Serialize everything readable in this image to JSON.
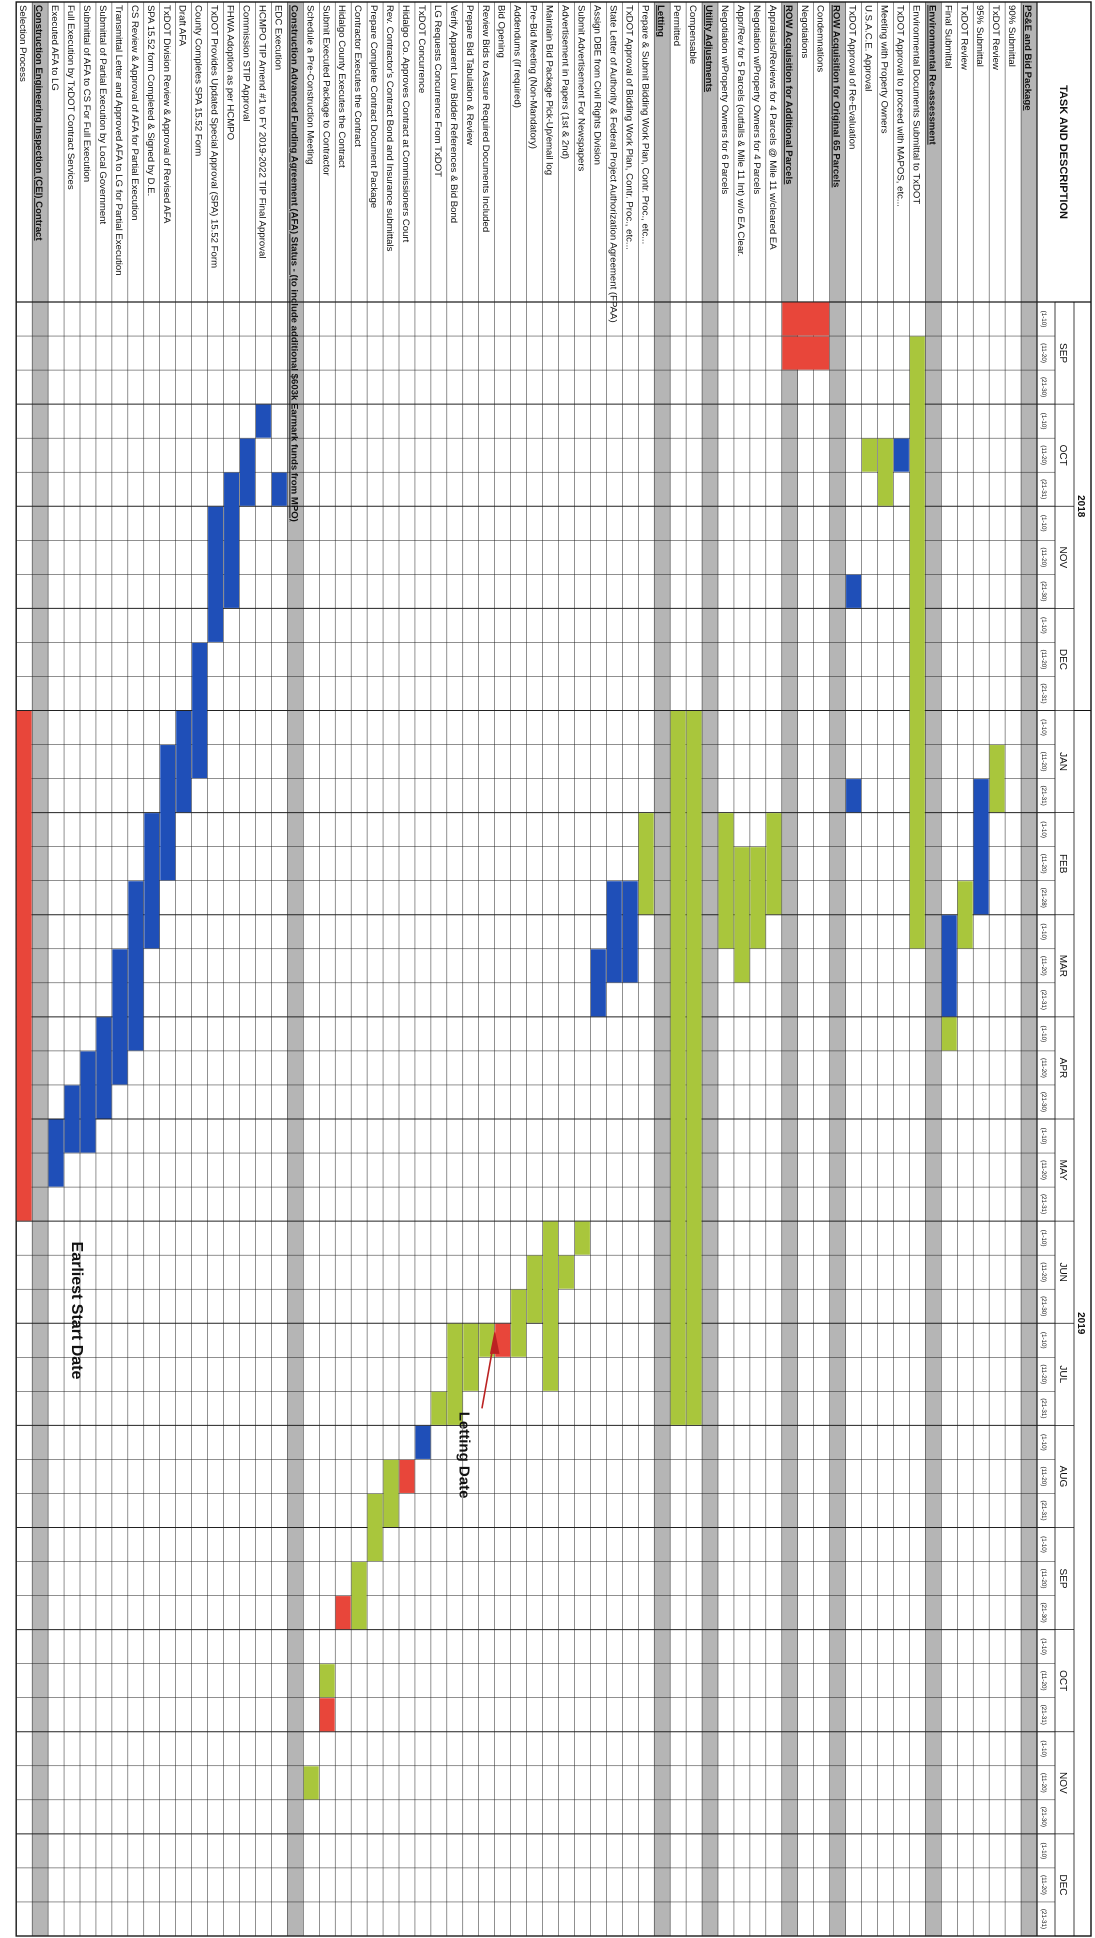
{
  "chart_data": {
    "type": "gantt",
    "title": "TASK AND DESCRIPTION",
    "years": [
      {
        "label": "2018",
        "months": [
          "SEP",
          "OCT",
          "NOV",
          "DEC"
        ]
      },
      {
        "label": "2019",
        "months": [
          "JAN",
          "FEB",
          "MAR",
          "APR",
          "MAY",
          "JUN",
          "JUL",
          "AUG",
          "SEP",
          "OCT",
          "NOV",
          "DEC"
        ]
      }
    ],
    "periods": [
      "(1-10)",
      "(11-20)",
      "(21-30)",
      "(1-10)",
      "(11-20)",
      "(21-31)",
      "(1-10)",
      "(11-20)",
      "(21-30)",
      "(1-10)",
      "(11-20)",
      "(21-31)",
      "(1-10)",
      "(11-20)",
      "(21-31)",
      "(1-10)",
      "(11-20)",
      "(21-28)",
      "(1-10)",
      "(11-20)",
      "(21-31)",
      "(1-10)",
      "(11-20)",
      "(21-30)",
      "(1-10)",
      "(11-20)",
      "(21-31)",
      "(1-10)",
      "(11-20)",
      "(21-30)",
      "(1-10)",
      "(11-20)",
      "(21-31)",
      "(1-10)",
      "(11-20)",
      "(21-31)",
      "(1-10)",
      "(11-20)",
      "(21-30)",
      "(1-10)",
      "(11-20)",
      "(21-31)",
      "(1-10)",
      "(11-20)",
      "(21-30)",
      "(1-10)",
      "(11-20)",
      "(21-31)"
    ],
    "colors": {
      "red": "#e8463a",
      "green": "#a9c63c",
      "blue": "#1f4fb8",
      "section": "#b5b5b5"
    },
    "tasks": [
      {
        "label": "PS&E and Bid Package",
        "section": true,
        "bars": []
      },
      {
        "label": "90% Submittal",
        "bars": []
      },
      {
        "label": "TxDOT Review",
        "bars": []
      },
      {
        "label": "95% Submittal",
        "bars": []
      },
      {
        "label": "TxDOT Review",
        "bars": []
      },
      {
        "label": "Final Submittal",
        "bars": []
      },
      {
        "label": "Environmental Re-assessment",
        "section": true,
        "bars": []
      },
      {
        "label": "Environmental Documents Submittal to TxDOT",
        "bars": []
      },
      {
        "label": "TxDOT Approval to proceed with MAPOS, etc...",
        "bars": []
      },
      {
        "label": "Meeting with Property Owners",
        "bars": []
      },
      {
        "label": "U.S.A.C.E. Approval",
        "bars": []
      },
      {
        "label": "TxDOT Approval of Re-Evaluation",
        "bars": []
      },
      {
        "label": "ROW Acquisition for Original 65 Parcels",
        "section": true,
        "bars": []
      },
      {
        "label": "Condemnations",
        "bars": []
      },
      {
        "label": "Negotiations",
        "bars": []
      },
      {
        "label": "ROW Acquisition for Additional Parcels",
        "section": true,
        "bars": []
      },
      {
        "label": "Appraisals/Reviews for 4 Parcels @ Mile 11 w/cleared EA",
        "bars": []
      },
      {
        "label": "Negotiation w/Property Owners for 4 Parcels",
        "bars": []
      },
      {
        "label": "Appr/Rev for 5 Parcels (outfalls & Mile 11 Int) w/o EA Clear.",
        "bars": []
      },
      {
        "label": "Negotiation w/Property Owners for 6 Parcels",
        "bars": []
      },
      {
        "label": "Utility Adjustments",
        "section": true,
        "bars": []
      },
      {
        "label": "Compensable",
        "bars": []
      },
      {
        "label": "Permitted",
        "bars": []
      },
      {
        "label": "Letting",
        "section": true,
        "bars": []
      },
      {
        "label": "Prepare & Submit Bidding Work Plan, Contr. Proc., etc...",
        "bars": []
      },
      {
        "label": "TxDOT Approval of Bidding Work Plan, Contr. Proc., etc...",
        "bars": []
      },
      {
        "label": "State Letter of Authority & Federal Project Authorization Agreement (FPAA)",
        "bars": []
      },
      {
        "label": "Assign DBE from Civil Rights Division",
        "bars": []
      },
      {
        "label": "Submit Advertisement For Newspapers",
        "bars": []
      },
      {
        "label": "Advertisement in Papers (1st & 2nd)",
        "bars": []
      },
      {
        "label": "Maintain Bid Package Pick-Up/email log",
        "bars": []
      },
      {
        "label": "Pre-Bid Meeting (Non-Mandatory)",
        "bars": []
      },
      {
        "label": "Addendums (if required)",
        "bars": []
      },
      {
        "label": "Bid Opening",
        "bars": []
      },
      {
        "label": "Review Bids to Assure Required Documents Included",
        "bars": []
      },
      {
        "label": "Prepare Bid Tabulation & Review",
        "bars": []
      },
      {
        "label": "Verify Apparent Low Bidder References & Bid Bond",
        "bars": []
      },
      {
        "label": "LG Requests Concurrence From TxDOT",
        "bars": []
      },
      {
        "label": "TxDOT Concurrence",
        "bars": []
      },
      {
        "label": "Hidalgo Co. Approves Contract at Commissioners Court",
        "bars": []
      },
      {
        "label": "Rev. Contractor's Contract Bond and Insurance submittals",
        "bars": []
      },
      {
        "label": "Prepare Complete Contract Document Package",
        "bars": []
      },
      {
        "label": "Contractor Executes the Contract",
        "bars": []
      },
      {
        "label": "Hidalgo County Executes the Contract",
        "bars": []
      },
      {
        "label": "Submit Executed Package to Contractor",
        "bars": []
      },
      {
        "label": "Schedule a Pre-Construction Meeting",
        "bars": []
      },
      {
        "label": "Construction Advanced Funding Agreement (AFA) Status - (to include additional $603k Earmark funds from MPO)",
        "section": true,
        "bars": []
      },
      {
        "label": "EDC Execution",
        "bars": []
      },
      {
        "label": "HCMPO TIP Amend #1 to FY 2019-2022 TIP Final Approval",
        "bars": []
      },
      {
        "label": "Commission STIP Approval",
        "bars": []
      },
      {
        "label": "FHWA Adoption as per HCMPO",
        "bars": []
      },
      {
        "label": "TxDOT Provides Updated Special Approval (SPA) 15.52 Form",
        "bars": []
      },
      {
        "label": "County Completes SPA 15.52 Form",
        "bars": []
      },
      {
        "label": "Draft AFA",
        "bars": []
      },
      {
        "label": "TxDOT Division Review & Approval of Revised AFA",
        "bars": []
      },
      {
        "label": "SPA 15.52 form Completed & Signed by D.E.",
        "bars": []
      },
      {
        "label": "CS Review & Approval of AFA for Partial Execution",
        "bars": []
      },
      {
        "label": "Transmittal Letter and Approved AFA to LG for Partial Execution",
        "bars": []
      },
      {
        "label": "Submittal of Partial Execution by Local Government",
        "bars": []
      },
      {
        "label": "Submittal of AFA to CS For Full Execution",
        "bars": []
      },
      {
        "label": "Full Execution by TxDOT Contract Services",
        "bars": []
      },
      {
        "label": "Executed AFA to LG",
        "bars": []
      },
      {
        "label": "Construction Engineering Inspection (CEI) Contract",
        "section": true,
        "bars": []
      },
      {
        "label": "Selection Process",
        "bars": []
      }
    ],
    "annotations": [
      "Letting Date",
      "Earliest Start Date"
    ]
  }
}
